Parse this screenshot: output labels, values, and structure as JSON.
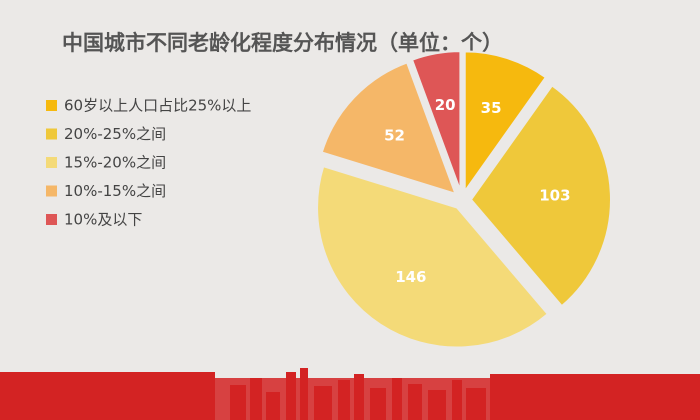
{
  "chart_data": {
    "type": "pie",
    "title": "中国城市不同老龄化程度分布情况（单位：个）",
    "categories": [
      "60岁以上人口占比25%以上",
      "20%-25%之间",
      "15%-20%之间",
      "10%-15%之间",
      "10%及以下"
    ],
    "values": [
      35,
      103,
      146,
      52,
      20
    ],
    "colors": [
      "#f6b90e",
      "#efc83a",
      "#f4da78",
      "#f5b768",
      "#de5656"
    ]
  }
}
